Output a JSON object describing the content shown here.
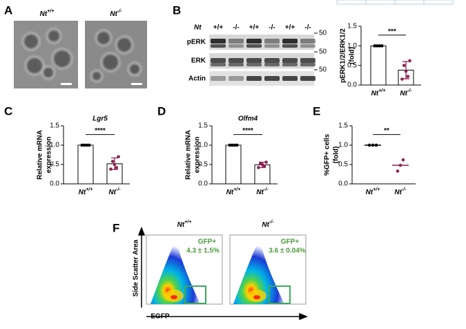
{
  "panels": {
    "a": {
      "label": "A",
      "genotypes": [
        {
          "name": "Nt",
          "sup": "+/+"
        },
        {
          "name": "Nt",
          "sup": "-/-"
        }
      ]
    },
    "b": {
      "label": "B",
      "gene": "Nt",
      "lanes": [
        "+/+",
        "-/-",
        "+/+",
        "-/-",
        "+/+",
        "-/-"
      ],
      "rows": [
        "pERK",
        "ERK",
        "Actin"
      ],
      "markers": [
        "50",
        "50",
        "50"
      ]
    },
    "c": {
      "label": "C"
    },
    "d": {
      "label": "D"
    },
    "e": {
      "label": "E"
    },
    "f": {
      "label": "F",
      "genotypes": [
        {
          "name": "Nt",
          "sup": "+/+"
        },
        {
          "name": "Nt",
          "sup": "-/-"
        }
      ],
      "gate": "GFP+",
      "gate_values": [
        "4.3 ± 1.5%",
        "3.6 ± 0.04%"
      ],
      "ylabel": "Side Scatter Area",
      "xlabel": "EGFP"
    }
  },
  "chart_data": [
    {
      "type": "bar",
      "ylabel": [
        "pERK1/2/ERK1/2",
        "(fold)"
      ],
      "ylim": [
        0,
        1.5
      ],
      "yticks": [
        {
          "value": 0,
          "label": "0.0"
        },
        {
          "value": 0.5,
          "label": "0.5"
        },
        {
          "value": 1,
          "label": "1.0"
        },
        {
          "value": 1.5,
          "label": "1.5"
        }
      ],
      "categories": [
        {
          "name": "Nt",
          "sup": "+/+"
        },
        {
          "name": "Nt",
          "sup": "-/-"
        }
      ],
      "values": [
        1,
        0.38
      ],
      "errors": [
        0,
        0.22
      ],
      "points": [
        [
          1,
          1,
          1,
          1
        ],
        [
          0.62,
          0.5,
          0.35,
          0.22,
          0.15
        ]
      ],
      "colors": [
        "#000000",
        "#8b2252"
      ],
      "significance": "***"
    },
    {
      "type": "bar",
      "title": "Lgr5",
      "ylabel": [
        "Relative mRNA",
        "expression"
      ],
      "ylim": [
        0,
        1.5
      ],
      "yticks": [
        {
          "value": 0,
          "label": "0.0"
        },
        {
          "value": 0.5,
          "label": "0.5"
        },
        {
          "value": 1,
          "label": "1.0"
        },
        {
          "value": 1.5,
          "label": "1.5"
        }
      ],
      "categories": [
        {
          "name": "Nt",
          "sup": "+/+"
        },
        {
          "name": "Nt",
          "sup": "-/-"
        }
      ],
      "values": [
        1,
        0.52
      ],
      "errors": [
        0,
        0.15
      ],
      "points": [
        [
          1,
          1,
          1,
          1
        ],
        [
          0.7,
          0.58,
          0.5,
          0.42,
          0.38
        ]
      ],
      "colors": [
        "#000000",
        "#8b2252"
      ],
      "significance": "****"
    },
    {
      "type": "bar",
      "title": "Olfm4",
      "ylabel": [
        "Relative mRNA",
        "expression"
      ],
      "ylim": [
        0,
        1.5
      ],
      "yticks": [
        {
          "value": 0,
          "label": "0.0"
        },
        {
          "value": 0.5,
          "label": "0.5"
        },
        {
          "value": 1,
          "label": "1.0"
        },
        {
          "value": 1.5,
          "label": "1.5"
        }
      ],
      "categories": [
        {
          "name": "Nt",
          "sup": "+/+"
        },
        {
          "name": "Nt",
          "sup": "-/-"
        }
      ],
      "values": [
        1,
        0.49
      ],
      "errors": [
        0,
        0.07
      ],
      "points": [
        [
          1,
          1,
          1,
          1
        ],
        [
          0.56,
          0.52,
          0.5,
          0.46,
          0.42
        ]
      ],
      "colors": [
        "#000000",
        "#8b2252"
      ],
      "significance": "****"
    },
    {
      "type": "dot",
      "ylabel": [
        "%GFP+ cells",
        "(fold)"
      ],
      "ylim": [
        0,
        1.5
      ],
      "yticks": [
        {
          "value": 0,
          "label": "0.0"
        },
        {
          "value": 0.5,
          "label": "0.5"
        },
        {
          "value": 1,
          "label": "1.0"
        },
        {
          "value": 1.5,
          "label": "1.5"
        }
      ],
      "categories": [
        {
          "name": "Nt",
          "sup": "+/+"
        },
        {
          "name": "Nt",
          "sup": "-/-"
        }
      ],
      "values": [
        1,
        0.48
      ],
      "points": [
        [
          1,
          1,
          1
        ],
        [
          0.62,
          0.48,
          0.33
        ]
      ],
      "colors": [
        "#000000",
        "#8b2252"
      ],
      "significance": "**"
    }
  ]
}
